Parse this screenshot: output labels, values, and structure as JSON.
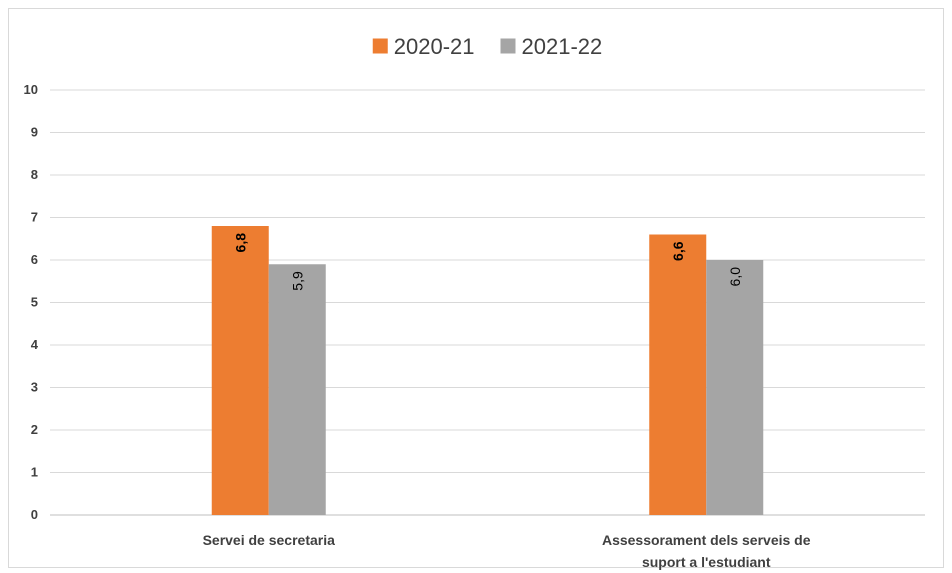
{
  "chart_data": {
    "type": "bar",
    "title": "",
    "xlabel": "",
    "ylabel": "",
    "categories": [
      [
        "Servei de secretaria"
      ],
      [
        "Assessorament dels serveis de",
        "suport a l'estudiant"
      ]
    ],
    "series": [
      {
        "name": "2020-21",
        "color": "#ED7D31",
        "values": [
          6.8,
          6.6
        ],
        "labels": [
          "6,8",
          "6,6"
        ],
        "label_bold": true
      },
      {
        "name": "2021-22",
        "color": "#A5A5A5",
        "values": [
          5.9,
          6.0
        ],
        "labels": [
          "5,9",
          "6,0"
        ],
        "label_bold": false
      }
    ],
    "ylim": [
      0,
      10
    ],
    "yticks": [
      0,
      1,
      2,
      3,
      4,
      5,
      6,
      7,
      8,
      9,
      10
    ],
    "grid": true,
    "legend": "top-center"
  }
}
